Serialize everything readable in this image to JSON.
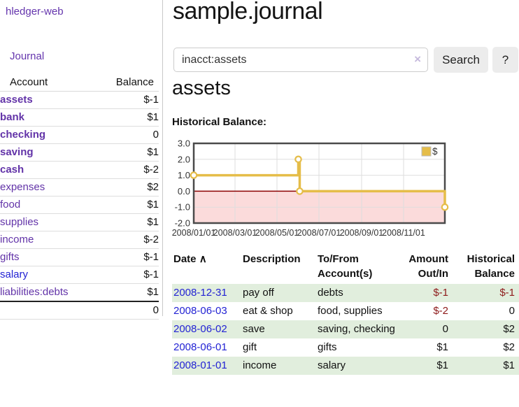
{
  "sidebar": {
    "brand": "hledger-web",
    "nav_journal": "Journal",
    "accounts_table": {
      "col_account": "Account",
      "col_balance": "Balance",
      "rows": [
        {
          "name": "assets",
          "balance": "$-1"
        },
        {
          "name": "bank",
          "balance": "$1"
        },
        {
          "name": "checking",
          "balance": "0"
        },
        {
          "name": "saving",
          "balance": "$1"
        },
        {
          "name": "cash",
          "balance": "$-2"
        },
        {
          "name": "expenses",
          "balance": "$2"
        },
        {
          "name": "food",
          "balance": "$1"
        },
        {
          "name": "supplies",
          "balance": "$1"
        },
        {
          "name": "income",
          "balance": "$-2"
        },
        {
          "name": "gifts",
          "balance": "$-1"
        },
        {
          "name": "salary",
          "balance": "$-1"
        },
        {
          "name": "liabilities:debts",
          "balance": "$1"
        }
      ],
      "total": "0"
    }
  },
  "header": {
    "title": "sample.journal"
  },
  "search": {
    "value": "inacct:assets",
    "clear_icon": "×",
    "button_label": "Search",
    "help_label": "?"
  },
  "account_page": {
    "heading": "assets",
    "chart_label": "Historical Balance:"
  },
  "chart_data": {
    "type": "line",
    "title": "Historical Balance:",
    "xlim": [
      "2008-01-01",
      "2008-12-31"
    ],
    "ylim": [
      -2,
      3
    ],
    "y_ticks": [
      3.0,
      2.0,
      1.0,
      0.0,
      -1.0,
      -2.0
    ],
    "x_ticks": [
      {
        "label": "2008/01/01",
        "date": "2008-01-01"
      },
      {
        "label": "2008/03/01",
        "date": "2008-03-01"
      },
      {
        "label": "2008/05/01",
        "date": "2008-05-01"
      },
      {
        "label": "2008/07/01",
        "date": "2008-07-01"
      },
      {
        "label": "2008/09/01",
        "date": "2008-09-01"
      },
      {
        "label": "2008/11/01",
        "date": "2008-11-01"
      }
    ],
    "series": [
      {
        "name": "$",
        "color": "#e5bd49",
        "step": true,
        "points": [
          [
            "2008-01-01",
            1
          ],
          [
            "2008-06-01",
            2
          ],
          [
            "2008-06-03",
            0
          ],
          [
            "2008-12-31",
            -1
          ]
        ]
      }
    ],
    "grid": true,
    "legend_position": "top-right",
    "negative_region_color": "#fbdbdb",
    "zero_line_color": "#8b0000"
  },
  "register": {
    "headers": [
      {
        "label": "Date",
        "sort": "∧"
      },
      {
        "label": "Description"
      },
      {
        "label": "To/From",
        "line2": "Account(s)"
      },
      {
        "label": "Amount",
        "line2": "Out/In"
      },
      {
        "label": "Historical",
        "line2": "Balance"
      }
    ],
    "rows": [
      {
        "date": "2008-12-31",
        "description": "pay off",
        "accounts": "debts",
        "amount": "$-1",
        "balance": "$-1"
      },
      {
        "date": "2008-06-03",
        "description": "eat & shop",
        "accounts": "food, supplies",
        "amount": "$-2",
        "balance": "0"
      },
      {
        "date": "2008-06-02",
        "description": "save",
        "accounts": "saving, checking",
        "amount": "0",
        "balance": "$2"
      },
      {
        "date": "2008-06-01",
        "description": "gift",
        "accounts": "gifts",
        "amount": "$1",
        "balance": "$2"
      },
      {
        "date": "2008-01-01",
        "description": "income",
        "accounts": "salary",
        "amount": "$1",
        "balance": "$1"
      }
    ]
  },
  "colors": {
    "link_purple": "#6435ad",
    "link_blue": "#2323d4",
    "negative_dark": "#8e1515",
    "negative_soft": "#bc8f8f",
    "row_stripe_green": "#e1eedd",
    "accent_gold": "#e5bd49",
    "negative_region_pink": "#fbdbdb",
    "zero_line_darkred": "#8b0000"
  }
}
